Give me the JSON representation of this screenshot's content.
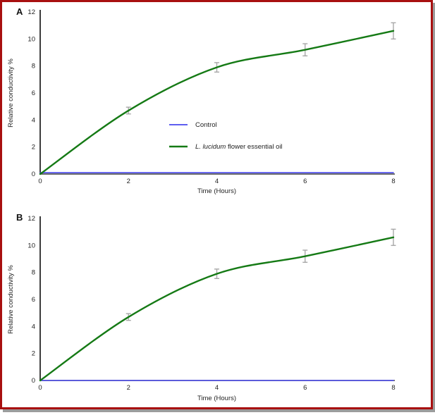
{
  "figure": {
    "border_color": "#a81010",
    "shadow_color": "#9c9c9c",
    "background": "#ffffff",
    "axis_color": "#3d3d3d",
    "errorbar_color": "#a8a8a8",
    "text_color": "#1f1f1f"
  },
  "chart_data": [
    {
      "type": "line",
      "panel_label": "A",
      "title": "",
      "xlabel": "Time (Hours)",
      "ylabel": "Relative conductivity %",
      "xlim": [
        0,
        8
      ],
      "ylim": [
        0,
        12
      ],
      "xticks": [
        0,
        2,
        4,
        6,
        8
      ],
      "yticks": [
        0,
        2,
        4,
        6,
        8,
        10,
        12
      ],
      "grid": false,
      "x": [
        0,
        2,
        4,
        6,
        8
      ],
      "series": [
        {
          "name": "Control",
          "color": "#4747ee",
          "values": [
            0.1,
            0.1,
            0.1,
            0.1,
            0.1
          ],
          "errors": [
            0,
            0,
            0,
            0,
            0
          ],
          "smooth": false
        },
        {
          "name": "L. lucidum flower essential oil",
          "name_italic_part": "L. lucidum",
          "name_rest_part": " flower essential oil",
          "color": "#157a15",
          "values": [
            0,
            4.7,
            7.9,
            9.2,
            10.6
          ],
          "errors": [
            0,
            0.25,
            0.35,
            0.45,
            0.6
          ],
          "smooth": true
        }
      ],
      "legend": {
        "visible": true,
        "position": "inside-center-right"
      }
    },
    {
      "type": "line",
      "panel_label": "B",
      "title": "",
      "xlabel": "Time (Hours)",
      "ylabel": "Relative conductivity %",
      "xlim": [
        0,
        8
      ],
      "ylim": [
        0,
        12
      ],
      "xticks": [
        0,
        2,
        4,
        6,
        8
      ],
      "yticks": [
        0,
        2,
        4,
        6,
        8,
        10,
        12
      ],
      "grid": false,
      "x": [
        0,
        2,
        4,
        6,
        8
      ],
      "series": [
        {
          "name": "Control",
          "color": "#4747ee",
          "values": [
            0,
            0,
            0,
            0,
            0
          ],
          "errors": [
            0,
            0,
            0,
            0,
            0
          ],
          "smooth": false
        },
        {
          "name": "L. lucidum flower essential oil",
          "name_italic_part": "L. lucidum",
          "name_rest_part": " flower essential oil",
          "color": "#157a15",
          "values": [
            0,
            4.7,
            7.9,
            9.2,
            10.6
          ],
          "errors": [
            0,
            0.25,
            0.35,
            0.45,
            0.6
          ],
          "smooth": true
        }
      ],
      "legend": {
        "visible": false,
        "position": "none"
      }
    }
  ]
}
